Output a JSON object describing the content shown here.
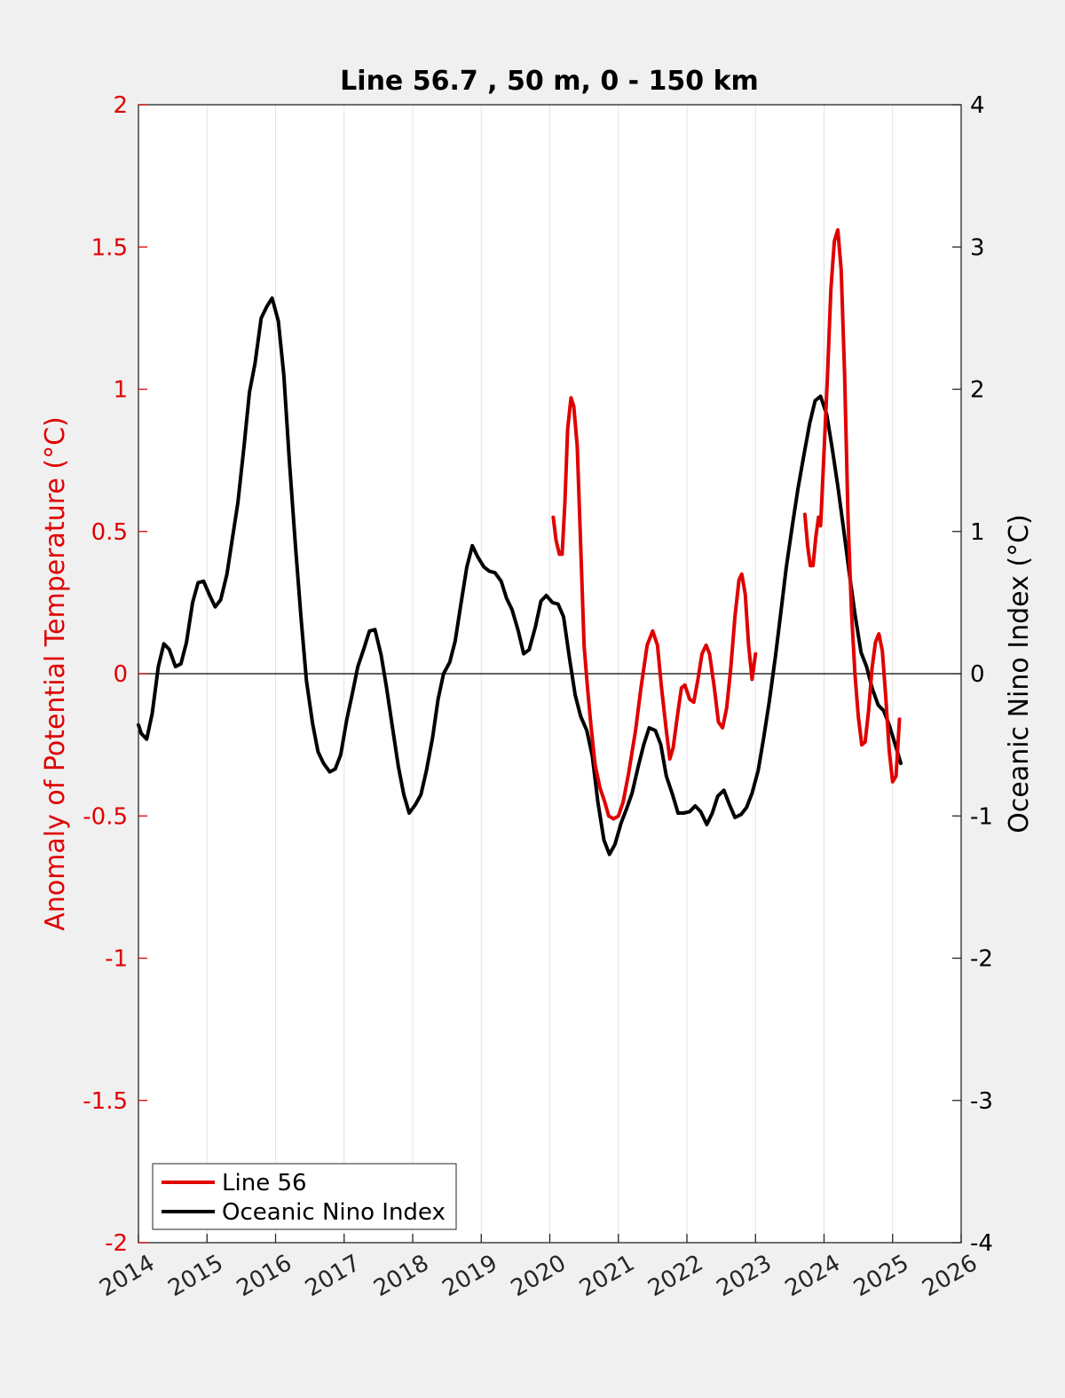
{
  "chart_data": {
    "type": "line",
    "title": "Line 56.7 , 50 m, 0 - 150 km",
    "ylabel": "Anomaly of Potential Temperature (°C)",
    "ylabel_right": "Oceanic Nino Index (°C)",
    "xlim": [
      2014,
      2026
    ],
    "ylim": [
      -2,
      2
    ],
    "ylim_right": [
      -4,
      4
    ],
    "x_ticks": [
      "2014",
      "2015",
      "2016",
      "2017",
      "2018",
      "2019",
      "2020",
      "2021",
      "2022",
      "2023",
      "2024",
      "2025",
      "2026"
    ],
    "y_ticks_left": [
      "-2",
      "-1.5",
      "-1",
      "-0.5",
      "0",
      "0.5",
      "1",
      "1.5",
      "2"
    ],
    "y_ticks_right": [
      "-4",
      "-3",
      "-2",
      "-1",
      "0",
      "1",
      "2",
      "3",
      "4"
    ],
    "x_grid": true,
    "zero_line": true,
    "legend": {
      "placement": "bottom-left",
      "entries": [
        {
          "label": "Line 56",
          "color": "#e00000"
        },
        {
          "label": "Oceanic Nino Index",
          "color": "#000000"
        }
      ]
    },
    "series": [
      {
        "name": "Line 56",
        "axis": "left",
        "color": "#e00000",
        "segments": [
          [
            [
              2020.05,
              0.55
            ],
            [
              2020.09,
              0.47
            ],
            [
              2020.14,
              0.42
            ],
            [
              2020.18,
              0.42
            ],
            [
              2020.22,
              0.6
            ],
            [
              2020.26,
              0.86
            ],
            [
              2020.31,
              0.97
            ],
            [
              2020.35,
              0.94
            ],
            [
              2020.4,
              0.8
            ],
            [
              2020.45,
              0.45
            ],
            [
              2020.5,
              0.1
            ],
            [
              2020.55,
              -0.05
            ],
            [
              2020.6,
              -0.18
            ],
            [
              2020.66,
              -0.32
            ],
            [
              2020.73,
              -0.4
            ],
            [
              2020.8,
              -0.45
            ],
            [
              2020.86,
              -0.5
            ],
            [
              2020.93,
              -0.51
            ],
            [
              2021.0,
              -0.5
            ],
            [
              2021.07,
              -0.45
            ],
            [
              2021.15,
              -0.35
            ],
            [
              2021.25,
              -0.2
            ],
            [
              2021.33,
              -0.05
            ],
            [
              2021.42,
              0.1
            ],
            [
              2021.5,
              0.15
            ],
            [
              2021.57,
              0.1
            ],
            [
              2021.63,
              -0.05
            ],
            [
              2021.7,
              -0.2
            ],
            [
              2021.75,
              -0.3
            ],
            [
              2021.8,
              -0.26
            ],
            [
              2021.86,
              -0.15
            ],
            [
              2021.92,
              -0.05
            ],
            [
              2021.97,
              -0.04
            ],
            [
              2022.04,
              -0.09
            ],
            [
              2022.1,
              -0.1
            ],
            [
              2022.16,
              -0.02
            ],
            [
              2022.22,
              0.07
            ],
            [
              2022.28,
              0.1
            ],
            [
              2022.33,
              0.07
            ],
            [
              2022.4,
              -0.05
            ],
            [
              2022.46,
              -0.17
            ],
            [
              2022.52,
              -0.19
            ],
            [
              2022.58,
              -0.12
            ],
            [
              2022.64,
              0.02
            ],
            [
              2022.7,
              0.2
            ],
            [
              2022.76,
              0.33
            ],
            [
              2022.8,
              0.35
            ],
            [
              2022.85,
              0.28
            ],
            [
              2022.9,
              0.1
            ],
            [
              2022.95,
              -0.02
            ],
            [
              2023.0,
              0.07
            ]
          ],
          [
            [
              2023.72,
              0.56
            ],
            [
              2023.76,
              0.45
            ],
            [
              2023.8,
              0.38
            ],
            [
              2023.84,
              0.38
            ],
            [
              2023.88,
              0.48
            ],
            [
              2023.92,
              0.55
            ],
            [
              2023.95,
              0.52
            ],
            [
              2024.0,
              0.78
            ],
            [
              2024.05,
              1.05
            ],
            [
              2024.1,
              1.35
            ],
            [
              2024.15,
              1.52
            ],
            [
              2024.2,
              1.56
            ],
            [
              2024.25,
              1.42
            ],
            [
              2024.3,
              1.05
            ],
            [
              2024.35,
              0.55
            ],
            [
              2024.4,
              0.22
            ],
            [
              2024.45,
              0.0
            ],
            [
              2024.5,
              -0.15
            ],
            [
              2024.55,
              -0.25
            ],
            [
              2024.6,
              -0.24
            ],
            [
              2024.65,
              -0.13
            ],
            [
              2024.7,
              0.02
            ],
            [
              2024.75,
              0.11
            ],
            [
              2024.8,
              0.14
            ],
            [
              2024.85,
              0.08
            ],
            [
              2024.9,
              -0.08
            ],
            [
              2024.95,
              -0.27
            ],
            [
              2025.0,
              -0.38
            ],
            [
              2025.05,
              -0.36
            ],
            [
              2025.1,
              -0.16
            ]
          ]
        ]
      },
      {
        "name": "Oceanic Nino Index",
        "axis": "right",
        "color": "#000000",
        "segments": [
          [
            [
              2014.0,
              -0.36
            ],
            [
              2014.04,
              -0.42
            ],
            [
              2014.12,
              -0.46
            ],
            [
              2014.2,
              -0.28
            ],
            [
              2014.29,
              0.05
            ],
            [
              2014.37,
              0.21
            ],
            [
              2014.45,
              0.17
            ],
            [
              2014.54,
              0.05
            ],
            [
              2014.62,
              0.07
            ],
            [
              2014.7,
              0.22
            ],
            [
              2014.79,
              0.5
            ],
            [
              2014.87,
              0.64
            ],
            [
              2014.95,
              0.65
            ],
            [
              2015.04,
              0.55
            ],
            [
              2015.12,
              0.47
            ],
            [
              2015.2,
              0.52
            ],
            [
              2015.29,
              0.7
            ],
            [
              2015.37,
              0.95
            ],
            [
              2015.45,
              1.2
            ],
            [
              2015.54,
              1.6
            ],
            [
              2015.62,
              1.98
            ],
            [
              2015.7,
              2.18
            ],
            [
              2015.79,
              2.5
            ],
            [
              2015.87,
              2.58
            ],
            [
              2015.95,
              2.64
            ],
            [
              2016.04,
              2.48
            ],
            [
              2016.12,
              2.1
            ],
            [
              2016.2,
              1.5
            ],
            [
              2016.29,
              0.9
            ],
            [
              2016.37,
              0.4
            ],
            [
              2016.45,
              -0.05
            ],
            [
              2016.54,
              -0.35
            ],
            [
              2016.62,
              -0.55
            ],
            [
              2016.7,
              -0.63
            ],
            [
              2016.79,
              -0.69
            ],
            [
              2016.87,
              -0.67
            ],
            [
              2016.95,
              -0.57
            ],
            [
              2017.04,
              -0.32
            ],
            [
              2017.12,
              -0.14
            ],
            [
              2017.2,
              0.05
            ],
            [
              2017.29,
              0.18
            ],
            [
              2017.37,
              0.3
            ],
            [
              2017.45,
              0.31
            ],
            [
              2017.54,
              0.13
            ],
            [
              2017.62,
              -0.1
            ],
            [
              2017.7,
              -0.36
            ],
            [
              2017.79,
              -0.65
            ],
            [
              2017.87,
              -0.85
            ],
            [
              2017.95,
              -0.98
            ],
            [
              2018.04,
              -0.92
            ],
            [
              2018.12,
              -0.85
            ],
            [
              2018.2,
              -0.68
            ],
            [
              2018.29,
              -0.45
            ],
            [
              2018.37,
              -0.18
            ],
            [
              2018.45,
              0.0
            ],
            [
              2018.54,
              0.08
            ],
            [
              2018.62,
              0.23
            ],
            [
              2018.7,
              0.48
            ],
            [
              2018.79,
              0.75
            ],
            [
              2018.87,
              0.9
            ],
            [
              2018.95,
              0.82
            ],
            [
              2019.04,
              0.75
            ],
            [
              2019.12,
              0.72
            ],
            [
              2019.2,
              0.71
            ],
            [
              2019.29,
              0.65
            ],
            [
              2019.37,
              0.53
            ],
            [
              2019.45,
              0.45
            ],
            [
              2019.54,
              0.3
            ],
            [
              2019.62,
              0.14
            ],
            [
              2019.7,
              0.17
            ],
            [
              2019.79,
              0.33
            ],
            [
              2019.87,
              0.51
            ],
            [
              2019.95,
              0.55
            ],
            [
              2020.04,
              0.5
            ],
            [
              2020.12,
              0.49
            ],
            [
              2020.2,
              0.4
            ],
            [
              2020.29,
              0.1
            ],
            [
              2020.37,
              -0.15
            ],
            [
              2020.45,
              -0.3
            ],
            [
              2020.54,
              -0.4
            ],
            [
              2020.62,
              -0.58
            ],
            [
              2020.7,
              -0.9
            ],
            [
              2020.79,
              -1.17
            ],
            [
              2020.87,
              -1.27
            ],
            [
              2020.95,
              -1.2
            ],
            [
              2021.04,
              -1.05
            ],
            [
              2021.12,
              -0.95
            ],
            [
              2021.2,
              -0.84
            ],
            [
              2021.29,
              -0.65
            ],
            [
              2021.37,
              -0.5
            ],
            [
              2021.45,
              -0.38
            ],
            [
              2021.54,
              -0.4
            ],
            [
              2021.62,
              -0.5
            ],
            [
              2021.7,
              -0.72
            ],
            [
              2021.79,
              -0.85
            ],
            [
              2021.87,
              -0.98
            ],
            [
              2021.95,
              -0.98
            ],
            [
              2022.04,
              -0.97
            ],
            [
              2022.12,
              -0.93
            ],
            [
              2022.2,
              -0.97
            ],
            [
              2022.29,
              -1.06
            ],
            [
              2022.37,
              -0.98
            ],
            [
              2022.45,
              -0.86
            ],
            [
              2022.54,
              -0.82
            ],
            [
              2022.62,
              -0.92
            ],
            [
              2022.7,
              -1.01
            ],
            [
              2022.79,
              -0.99
            ],
            [
              2022.87,
              -0.94
            ],
            [
              2022.95,
              -0.84
            ],
            [
              2023.04,
              -0.68
            ],
            [
              2023.12,
              -0.45
            ],
            [
              2023.2,
              -0.2
            ],
            [
              2023.29,
              0.12
            ],
            [
              2023.37,
              0.43
            ],
            [
              2023.45,
              0.75
            ],
            [
              2023.54,
              1.05
            ],
            [
              2023.62,
              1.3
            ],
            [
              2023.7,
              1.52
            ],
            [
              2023.79,
              1.76
            ],
            [
              2023.87,
              1.92
            ],
            [
              2023.95,
              1.95
            ],
            [
              2024.04,
              1.82
            ],
            [
              2024.12,
              1.58
            ],
            [
              2024.2,
              1.32
            ],
            [
              2024.29,
              1.0
            ],
            [
              2024.37,
              0.7
            ],
            [
              2024.45,
              0.42
            ],
            [
              2024.54,
              0.15
            ],
            [
              2024.62,
              0.05
            ],
            [
              2024.7,
              -0.1
            ],
            [
              2024.79,
              -0.22
            ],
            [
              2024.87,
              -0.26
            ],
            [
              2024.95,
              -0.36
            ],
            [
              2025.04,
              -0.5
            ],
            [
              2025.12,
              -0.63
            ]
          ]
        ]
      }
    ]
  }
}
